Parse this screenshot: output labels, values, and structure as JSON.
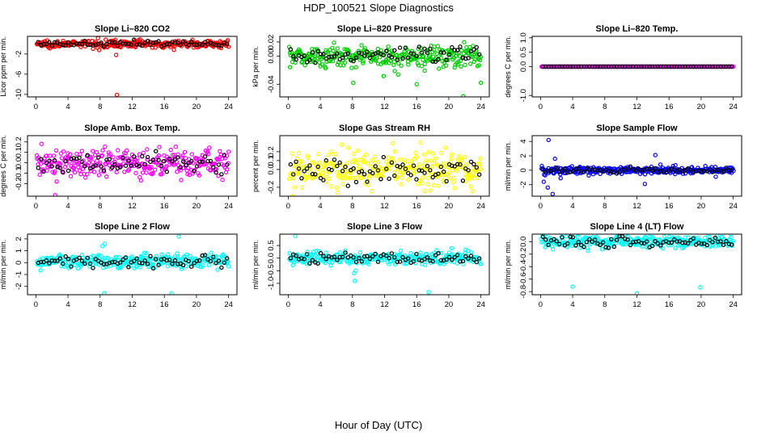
{
  "figure": {
    "title": "HDP_100521  Slope Diagnostics",
    "xlabel": "Hour of Day (UTC)"
  },
  "chart_data": [
    {
      "type": "scatter",
      "title": "Slope Li–820 CO2",
      "ylabel": "Licor ppm per min.",
      "xlim": [
        0,
        24
      ],
      "ylim": [
        -10.5,
        1.5
      ],
      "xticks": [
        "0",
        "4",
        "8",
        "12",
        "16",
        "20",
        "24"
      ],
      "ytick_values": [
        -10,
        -6,
        -2
      ],
      "ytick_labels": [
        "-10",
        "-6",
        "-2"
      ],
      "color": "#ff0000",
      "center": 0.0,
      "spread": 0.35,
      "outliers": [
        [
          10.1,
          -10.1
        ],
        [
          10.0,
          -2.2
        ],
        [
          9.9,
          0.8
        ],
        [
          13.0,
          0.9
        ]
      ]
    },
    {
      "type": "scatter",
      "title": "Slope Li–820 Pressure",
      "ylabel": "kPa per min.",
      "xlim": [
        0,
        24
      ],
      "ylim": [
        -0.058,
        0.028
      ],
      "xticks": [
        "0",
        "4",
        "8",
        "12",
        "16",
        "20",
        "24"
      ],
      "ytick_values": [
        -0.04,
        0.0,
        0.02
      ],
      "ytick_labels": [
        "-0.04",
        "0.00",
        "0.02"
      ],
      "color": "#00cc00",
      "center": 0.0,
      "spread": 0.008,
      "outliers": [
        [
          21.8,
          -0.057
        ],
        [
          16.0,
          -0.04
        ],
        [
          8.1,
          -0.038
        ],
        [
          24.0,
          -0.038
        ]
      ]
    },
    {
      "type": "scatter",
      "title": "Slope Li–820 Temp.",
      "ylabel": "degrees C per min.",
      "xlim": [
        0,
        24
      ],
      "ylim": [
        -1.05,
        1.05
      ],
      "xticks": [
        "0",
        "4",
        "8",
        "12",
        "16",
        "20",
        "24"
      ],
      "ytick_values": [
        -1.0,
        0.0,
        0.5,
        1.0
      ],
      "ytick_labels": [
        "-1.0",
        "0.0",
        "0.5",
        "1.0"
      ],
      "color": "#ff00ff",
      "center": 0.0,
      "spread": 0.0,
      "outliers": []
    },
    {
      "type": "scatter",
      "title": "Slope Amb. Box Temp.",
      "ylabel": "degrees C per min.",
      "xlim": [
        0,
        24
      ],
      "ylim": [
        -0.32,
        0.26
      ],
      "xticks": [
        "0",
        "4",
        "8",
        "12",
        "16",
        "20",
        "24"
      ],
      "ytick_values": [
        -0.2,
        -0.1,
        0.0,
        0.1,
        0.2
      ],
      "ytick_labels": [
        "-0.2",
        "-0.1",
        "0.0",
        "0.1",
        "0.2"
      ],
      "color": "#ff00ff",
      "center": 0.0,
      "spread": 0.07,
      "outliers": [
        [
          2.4,
          -0.31
        ]
      ]
    },
    {
      "type": "scatter",
      "title": "Slope Gas Stream RH",
      "ylabel": "percent per min.",
      "xlim": [
        0,
        24
      ],
      "ylim": [
        -0.3,
        0.38
      ],
      "xticks": [
        "0",
        "4",
        "8",
        "12",
        "16",
        "20",
        "24"
      ],
      "ytick_values": [
        -0.2,
        0.0,
        0.1,
        0.2
      ],
      "ytick_labels": [
        "-0.2",
        "0.0",
        "0.1",
        "0.2"
      ],
      "color": "#ffff00",
      "center": 0.0,
      "spread": 0.09,
      "outliers": [
        [
          17.0,
          -0.24
        ]
      ]
    },
    {
      "type": "scatter",
      "title": "Slope Sample Flow",
      "ylabel": "ml/min per min.",
      "xlim": [
        0,
        24
      ],
      "ylim": [
        -3.6,
        4.8
      ],
      "xticks": [
        "0",
        "4",
        "8",
        "12",
        "16",
        "20",
        "24"
      ],
      "ytick_values": [
        -2,
        0,
        2,
        4
      ],
      "ytick_labels": [
        "-2",
        "0",
        "2",
        "4"
      ],
      "color": "#0000ff",
      "center": 0.0,
      "spread": 0.25,
      "outliers": [
        [
          1.0,
          4.2
        ],
        [
          1.5,
          -3.3
        ],
        [
          14.3,
          2.1
        ],
        [
          13.0,
          -1.9
        ],
        [
          0.4,
          -1.6
        ],
        [
          1.8,
          1.6
        ],
        [
          2.5,
          -1.1
        ],
        [
          0.9,
          -2.4
        ],
        [
          16.8,
          0.7
        ]
      ]
    },
    {
      "type": "scatter",
      "title": "Slope Line 2 Flow",
      "ylabel": "ml/min per min.",
      "xlim": [
        0,
        24
      ],
      "ylim": [
        -2.7,
        2.4
      ],
      "xticks": [
        "0",
        "4",
        "8",
        "12",
        "16",
        "20",
        "24"
      ],
      "ytick_values": [
        -2,
        -1,
        0,
        1,
        2
      ],
      "ytick_labels": [
        "-2",
        "-1",
        "0",
        "1",
        "2"
      ],
      "color": "#00ffff",
      "center": 0.1,
      "spread": 0.3,
      "outliers": [
        [
          8.5,
          -2.6
        ],
        [
          16.9,
          -2.6
        ],
        [
          8.6,
          1.6
        ],
        [
          17.8,
          2.2
        ],
        [
          8.3,
          1.4
        ]
      ]
    },
    {
      "type": "scatter",
      "title": "Slope Line 3 Flow",
      "ylabel": "ml/min per min.",
      "xlim": [
        0,
        24
      ],
      "ylim": [
        -1.45,
        0.95
      ],
      "xticks": [
        "0",
        "4",
        "8",
        "12",
        "16",
        "20",
        "24"
      ],
      "ytick_values": [
        -1.0,
        -0.5,
        0.0,
        0.5
      ],
      "ytick_labels": [
        "-1.0",
        "-0.5",
        "0.0",
        "0.5"
      ],
      "color": "#00ffff",
      "center": 0.0,
      "spread": 0.13,
      "outliers": [
        [
          0.9,
          0.88
        ],
        [
          8.3,
          -0.9
        ],
        [
          8.2,
          -0.6
        ],
        [
          17.5,
          -1.35
        ],
        [
          8.4,
          -0.5
        ]
      ]
    },
    {
      "type": "scatter",
      "title": "Slope Line 4 (LT) Flow",
      "ylabel": "ml/min per min.",
      "xlim": [
        0,
        24
      ],
      "ylim": [
        -0.85,
        0.12
      ],
      "xticks": [
        "0",
        "4",
        "8",
        "12",
        "16",
        "20",
        "24"
      ],
      "ytick_values": [
        -0.8,
        -0.6,
        -0.4,
        -0.2,
        0.0
      ],
      "ytick_labels": [
        "-0.8",
        "-0.6",
        "-0.4",
        "-0.2",
        "0.0"
      ],
      "color": "#00ffff",
      "center": 0.0,
      "spread": 0.05,
      "outliers": [
        [
          4.0,
          -0.72
        ],
        [
          12.0,
          -0.83
        ],
        [
          19.9,
          -0.73
        ]
      ]
    }
  ]
}
